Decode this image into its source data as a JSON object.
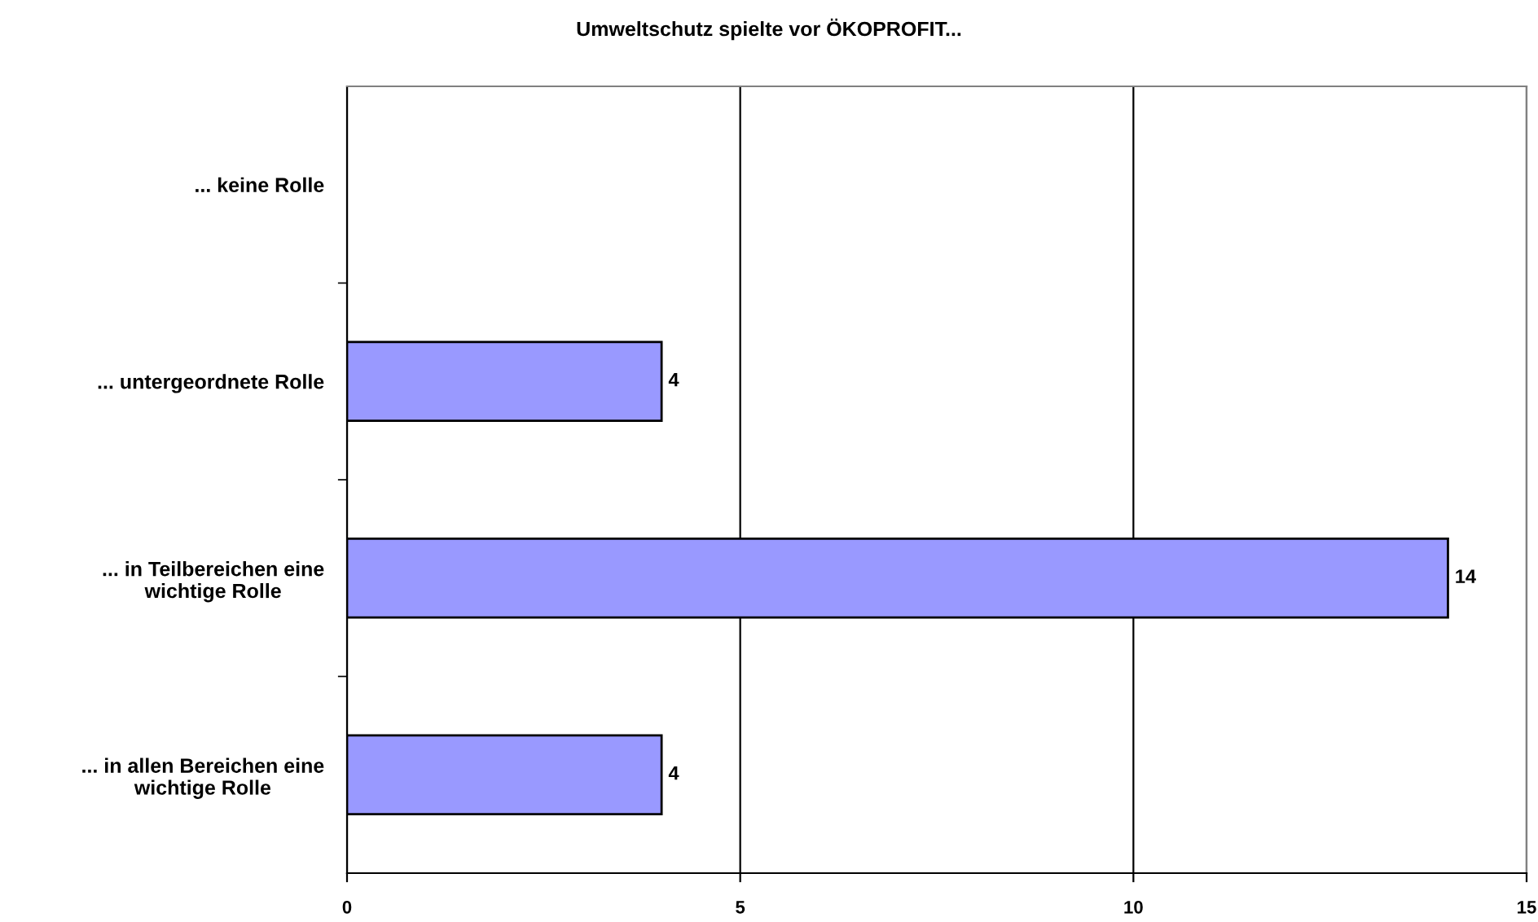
{
  "chart_data": {
    "type": "bar",
    "orientation": "horizontal",
    "title": "Umweltschutz spielte vor ÖKOPROFIT...",
    "categories": [
      "... keine Rolle",
      "... untergeordnete Rolle",
      "... in Teilbereichen eine\nwichtige Rolle",
      "... in allen Bereichen eine\nwichtige Rolle"
    ],
    "values": [
      null,
      4,
      14,
      4
    ],
    "color": "#9999ff",
    "data_labels": true,
    "xlim": [
      0,
      15
    ],
    "xticks": [
      0,
      5,
      10,
      15
    ],
    "grid": "x",
    "legend": false
  }
}
